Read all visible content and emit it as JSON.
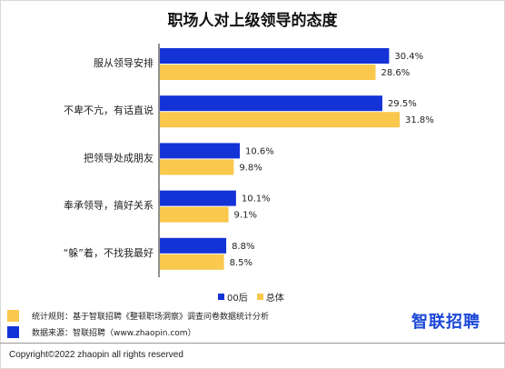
{
  "chart_data": {
    "type": "bar",
    "orientation": "horizontal",
    "title": "职场人对上级领导的态度",
    "categories": [
      "服从领导安排",
      "不卑不亢，有话直说",
      "把领导处成朋友",
      "奉承领导，搞好关系",
      "“躲”着，不找我最好"
    ],
    "series": [
      {
        "name": "00后",
        "color": "#1433d6",
        "values": [
          30.4,
          29.5,
          10.6,
          10.1,
          8.8
        ]
      },
      {
        "name": "总体",
        "color": "#f9c84c",
        "values": [
          28.6,
          31.8,
          9.8,
          9.1,
          8.5
        ]
      }
    ],
    "value_format": "%",
    "xlim": [
      0,
      33
    ],
    "grid": false,
    "legend_position": "bottom-center"
  },
  "notes": [
    {
      "color": "#f9c84c",
      "text": "统计规则：基于智联招聘《整顿职场洞察》调查问卷数据统计分析"
    },
    {
      "color": "#1433d6",
      "text": "数据来源：智联招聘（www.zhaopin.com）"
    }
  ],
  "logo": "智联招聘",
  "copyright": "Copyright©2022 zhaopin all rights reserved"
}
